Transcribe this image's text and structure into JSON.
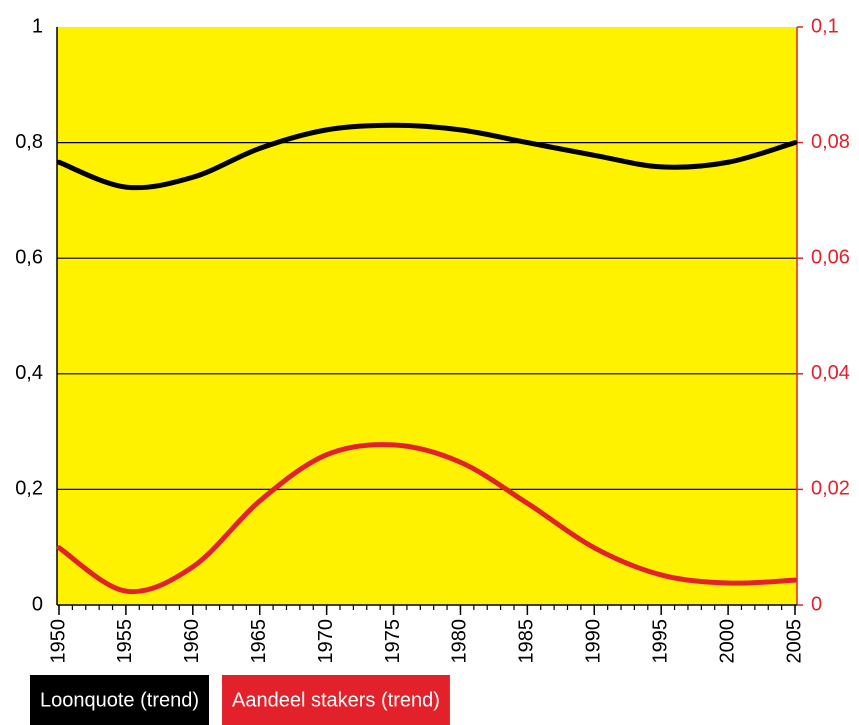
{
  "chart_data": {
    "type": "line",
    "x": [
      1950,
      1955,
      1960,
      1965,
      1970,
      1975,
      1980,
      1985,
      1990,
      1995,
      2000,
      2005
    ],
    "xlim": [
      1950,
      2005
    ],
    "xticks": [
      1950,
      1955,
      1960,
      1965,
      1970,
      1975,
      1980,
      1985,
      1990,
      1995,
      2000,
      2005
    ],
    "ylim": [
      0,
      1
    ],
    "yticks": [
      0,
      {
        "value": 0.2,
        "label": "0,2"
      },
      {
        "value": 0.4,
        "label": "0,4"
      },
      {
        "value": 0.6,
        "label": "0,6"
      },
      {
        "value": 0.8,
        "label": "0,8"
      },
      1
    ],
    "y2lim": [
      0,
      0.1
    ],
    "y2ticks": [
      0,
      {
        "value": 0.02,
        "label": "0,02"
      },
      {
        "value": 0.04,
        "label": "0,04"
      },
      {
        "value": 0.06,
        "label": "0,06"
      },
      {
        "value": 0.08,
        "label": "0,08"
      },
      {
        "value": 0.1,
        "label": "0,1"
      }
    ],
    "grid": true,
    "background": "#fff200",
    "series": [
      {
        "name": "Loonquote (trend)",
        "color": "#000000",
        "values": [
          0.766,
          0.723,
          0.74,
          0.79,
          0.822,
          0.83,
          0.822,
          0.8,
          0.778,
          0.758,
          0.766,
          0.8
        ]
      },
      {
        "name": "Aandeel stakers (trend)",
        "color": "#e3212b",
        "axis": "y2",
        "values": [
          0.0099,
          0.0024,
          0.0066,
          0.018,
          0.026,
          0.0277,
          0.0247,
          0.0176,
          0.0099,
          0.0052,
          0.0038,
          0.0043
        ]
      }
    ]
  }
}
